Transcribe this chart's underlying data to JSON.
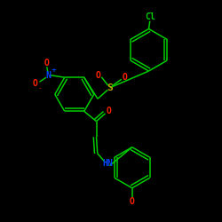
{
  "background_color": "#000000",
  "bond_color": "#00cc00",
  "atom_colors": {
    "O": "#ff2200",
    "S": "#bbaa00",
    "N": "#0044ff",
    "Cl": "#00cc00",
    "C": "#00cc00",
    "H": "#00cc00"
  },
  "figsize": [
    2.5,
    2.5
  ],
  "dpi": 100
}
